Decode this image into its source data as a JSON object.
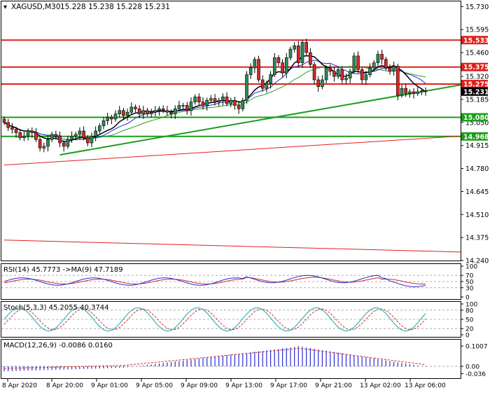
{
  "header": {
    "symbol": "XAGUSD,M30",
    "ohlc": "15.228 15.238 15.228 15.231"
  },
  "colors": {
    "background": "#ffffff",
    "bull_candle": "#2e8b57",
    "bear_candle": "#d62728",
    "hline": "#e0201b",
    "trendline": "#1b9e1b",
    "ma_fast": "#000000",
    "ma_mid": "#2b2bd6",
    "ma_slow": "#2aa02a",
    "ma_long": "#e0201b",
    "grid_dashed": "#9a9a9a"
  },
  "chart_data": [
    {
      "type": "candlestick",
      "title": "XAGUSD,M30 15.228 15.238 15.228 15.231",
      "ylim": [
        14.24,
        15.76
      ],
      "y_ticks": [
        "15.730",
        "15.595",
        "15.460",
        "15.320",
        "15.185",
        "15.050",
        "14.915",
        "14.780",
        "14.645",
        "14.510",
        "14.375",
        "14.240"
      ],
      "x_ticks": [
        "8 Apr 2020",
        "8 Apr 20:00",
        "9 Apr 01:00",
        "9 Apr 05:00",
        "9 Apr 09:00",
        "9 Apr 13:00",
        "9 Apr 17:00",
        "9 Apr 21:00",
        "13 Apr 02:00",
        "13 Apr 06:00"
      ],
      "price_labels": [
        {
          "text": "15.533",
          "value": 15.533,
          "color": "#e0201b"
        },
        {
          "text": "15.375",
          "value": 15.375,
          "color": "#e0201b"
        },
        {
          "text": "15.275",
          "value": 15.275,
          "color": "#e0201b"
        },
        {
          "text": "15.231",
          "value": 15.231,
          "color": "#000000"
        },
        {
          "text": "15.080",
          "value": 15.08,
          "color": "#1b9e1b"
        },
        {
          "text": "14.968",
          "value": 14.968,
          "color": "#1b9e1b"
        }
      ],
      "horizontal_levels": [
        15.533,
        15.375,
        15.275,
        15.08,
        14.968
      ],
      "trendlines": [
        {
          "from": [
            14,
            14.86
          ],
          "to": [
            110,
            15.27
          ]
        }
      ],
      "channel_lines": [
        {
          "from": [
            0,
            14.8
          ],
          "to": [
            110,
            14.97
          ]
        },
        {
          "from": [
            0,
            14.36
          ],
          "to": [
            110,
            14.29
          ]
        }
      ],
      "closes": [
        15.05,
        15.02,
        15.01,
        14.99,
        14.96,
        14.97,
        15.0,
        14.99,
        14.95,
        14.9,
        14.91,
        14.95,
        14.98,
        14.97,
        14.93,
        14.91,
        14.95,
        14.97,
        14.98,
        15.0,
        14.96,
        14.93,
        14.97,
        15.0,
        15.03,
        15.06,
        15.08,
        15.07,
        15.1,
        15.12,
        15.09,
        15.11,
        15.14,
        15.13,
        15.1,
        15.12,
        15.1,
        15.11,
        15.12,
        15.13,
        15.12,
        15.11,
        15.1,
        15.13,
        15.15,
        15.15,
        15.12,
        15.17,
        15.2,
        15.17,
        15.15,
        15.18,
        15.19,
        15.17,
        15.18,
        15.2,
        15.16,
        15.18,
        15.15,
        15.13,
        15.18,
        15.33,
        15.37,
        15.42,
        15.3,
        15.25,
        15.28,
        15.33,
        15.43,
        15.4,
        15.34,
        15.43,
        15.48,
        15.5,
        15.4,
        15.52,
        15.46,
        15.39,
        15.3,
        15.26,
        15.3,
        15.37,
        15.35,
        15.32,
        15.36,
        15.3,
        15.31,
        15.35,
        15.44,
        15.36,
        15.3,
        15.33,
        15.37,
        15.4,
        15.45,
        15.42,
        15.37,
        15.35,
        15.38,
        15.21,
        15.25,
        15.22,
        15.23,
        15.22,
        15.23,
        15.235,
        15.231
      ],
      "indicators": [
        {
          "name": "RSI(14)",
          "text": "RSI(14) 45.7773 ->MA(9) 47.7189",
          "ticks": [
            "100",
            "70",
            "50",
            "30",
            "0"
          ]
        },
        {
          "name": "Stoch(5,3,3)",
          "text": "Stoch(5,3,3) 45.2055 40.3744",
          "ticks": [
            "100",
            "80",
            "50",
            "20",
            "0"
          ]
        },
        {
          "name": "MACD(12,26,9)",
          "text": "MACD(12,26,9) -0.0086 0.0160",
          "ticks": [
            "0.1007",
            "0.00",
            "-0.036"
          ]
        }
      ]
    }
  ]
}
